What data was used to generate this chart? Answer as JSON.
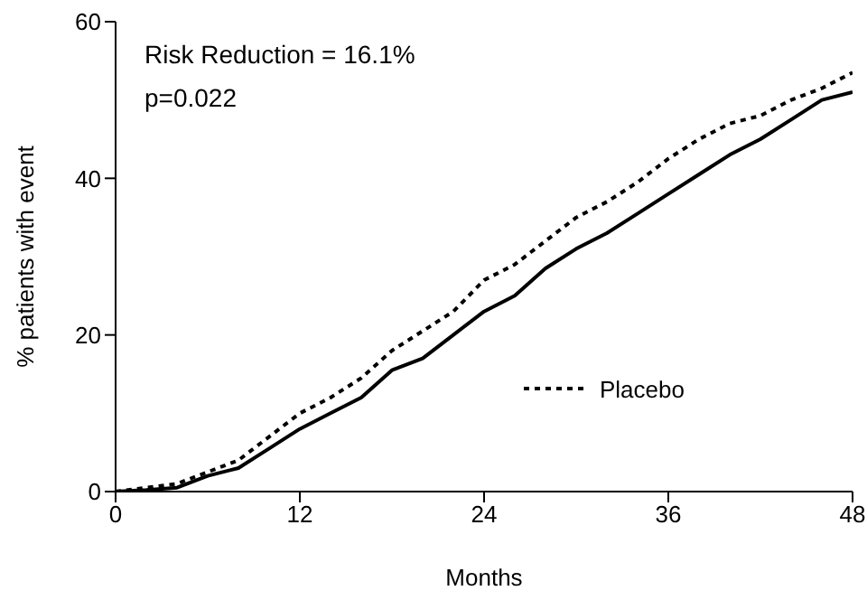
{
  "chart_data": {
    "type": "line",
    "xlabel": "Months",
    "ylabel": "% patients with event",
    "annotations": [
      "Risk Reduction = 16.1%",
      "p=0.022"
    ],
    "series": [
      {
        "color": "#000000",
        "line_style": "solid",
        "x": [
          0,
          2,
          4,
          6,
          8,
          10,
          12,
          14,
          16,
          18,
          20,
          22,
          24,
          26,
          28,
          30,
          32,
          34,
          36,
          38,
          40,
          42,
          44,
          46,
          48
        ],
        "values": [
          0,
          0.2,
          0.5,
          2,
          3,
          5.5,
          8,
          10,
          12,
          15.5,
          17,
          20,
          23,
          25,
          28.5,
          31,
          33,
          35.5,
          38,
          40.5,
          43,
          45,
          47.5,
          50,
          51
        ]
      },
      {
        "name": "Placebo",
        "color": "#000000",
        "line_style": "dotted",
        "x": [
          0,
          2,
          4,
          6,
          8,
          10,
          12,
          14,
          16,
          18,
          20,
          22,
          24,
          26,
          28,
          30,
          32,
          34,
          36,
          38,
          40,
          42,
          44,
          46,
          48
        ],
        "values": [
          0,
          0.5,
          1,
          2.5,
          4,
          7,
          10,
          12,
          14.5,
          18,
          20.5,
          23,
          27,
          29,
          32,
          35,
          37,
          39.5,
          42.5,
          45,
          47,
          48,
          50,
          51.5,
          53.5
        ]
      }
    ],
    "xlim": [
      0,
      48
    ],
    "xticks": [
      0,
      12,
      24,
      36,
      48
    ],
    "ylim": [
      0,
      60
    ],
    "yticks": [
      0,
      20,
      40,
      60
    ],
    "legend": "right",
    "grid": false,
    "marker": "none"
  }
}
